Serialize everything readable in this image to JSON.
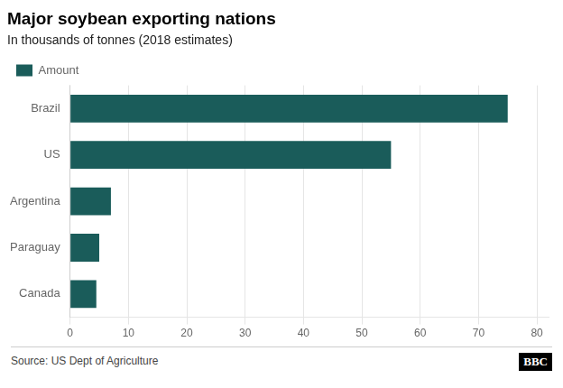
{
  "chart_data": {
    "type": "bar",
    "orientation": "horizontal",
    "title": "Major soybean exporting nations",
    "subtitle": "In thousands of tonnes (2018 estimates)",
    "categories": [
      "Brazil",
      "US",
      "Argentina",
      "Paraguay",
      "Canada"
    ],
    "series": [
      {
        "name": "Amount",
        "color": "#1a5c5a",
        "values": [
          75,
          55,
          7,
          5,
          4.5
        ]
      }
    ],
    "xlim": [
      0,
      82
    ],
    "xticks": [
      0,
      10,
      20,
      30,
      40,
      50,
      60,
      70,
      80
    ],
    "grid": true,
    "legend": "upper left",
    "annotations": [
      "Source: US Dept of Agriculture",
      "BBC"
    ]
  }
}
